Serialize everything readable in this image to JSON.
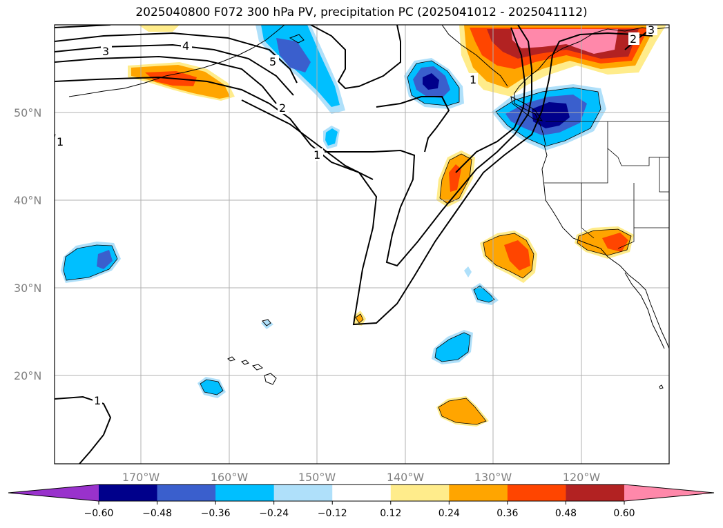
{
  "title": "2025040800 F072 300 hPa PV, precipitation PC (2025041012 - 2025041112)",
  "lat_ticks": [
    "50°N",
    "40°N",
    "30°N",
    "20°N"
  ],
  "lon_ticks": [
    "170°W",
    "160°W",
    "150°W",
    "140°W",
    "130°W",
    "120°W"
  ],
  "colorbar": {
    "levels": [
      "−0.60",
      "−0.48",
      "−0.36",
      "−0.24",
      "−0.12",
      "0.12",
      "0.24",
      "0.36",
      "0.48",
      "0.60"
    ],
    "colors": [
      "#9932cc",
      "#00008b",
      "#3a5fcd",
      "#00bfff",
      "#afe0fa",
      "#ffffff",
      "#ffec8b",
      "#ffa500",
      "#ff4500",
      "#b22222",
      "#ff88aa"
    ]
  },
  "pv_contour_labels": [
    "1",
    "2",
    "3",
    "4",
    "5",
    "1",
    "1",
    "2",
    "3",
    "1"
  ]
}
